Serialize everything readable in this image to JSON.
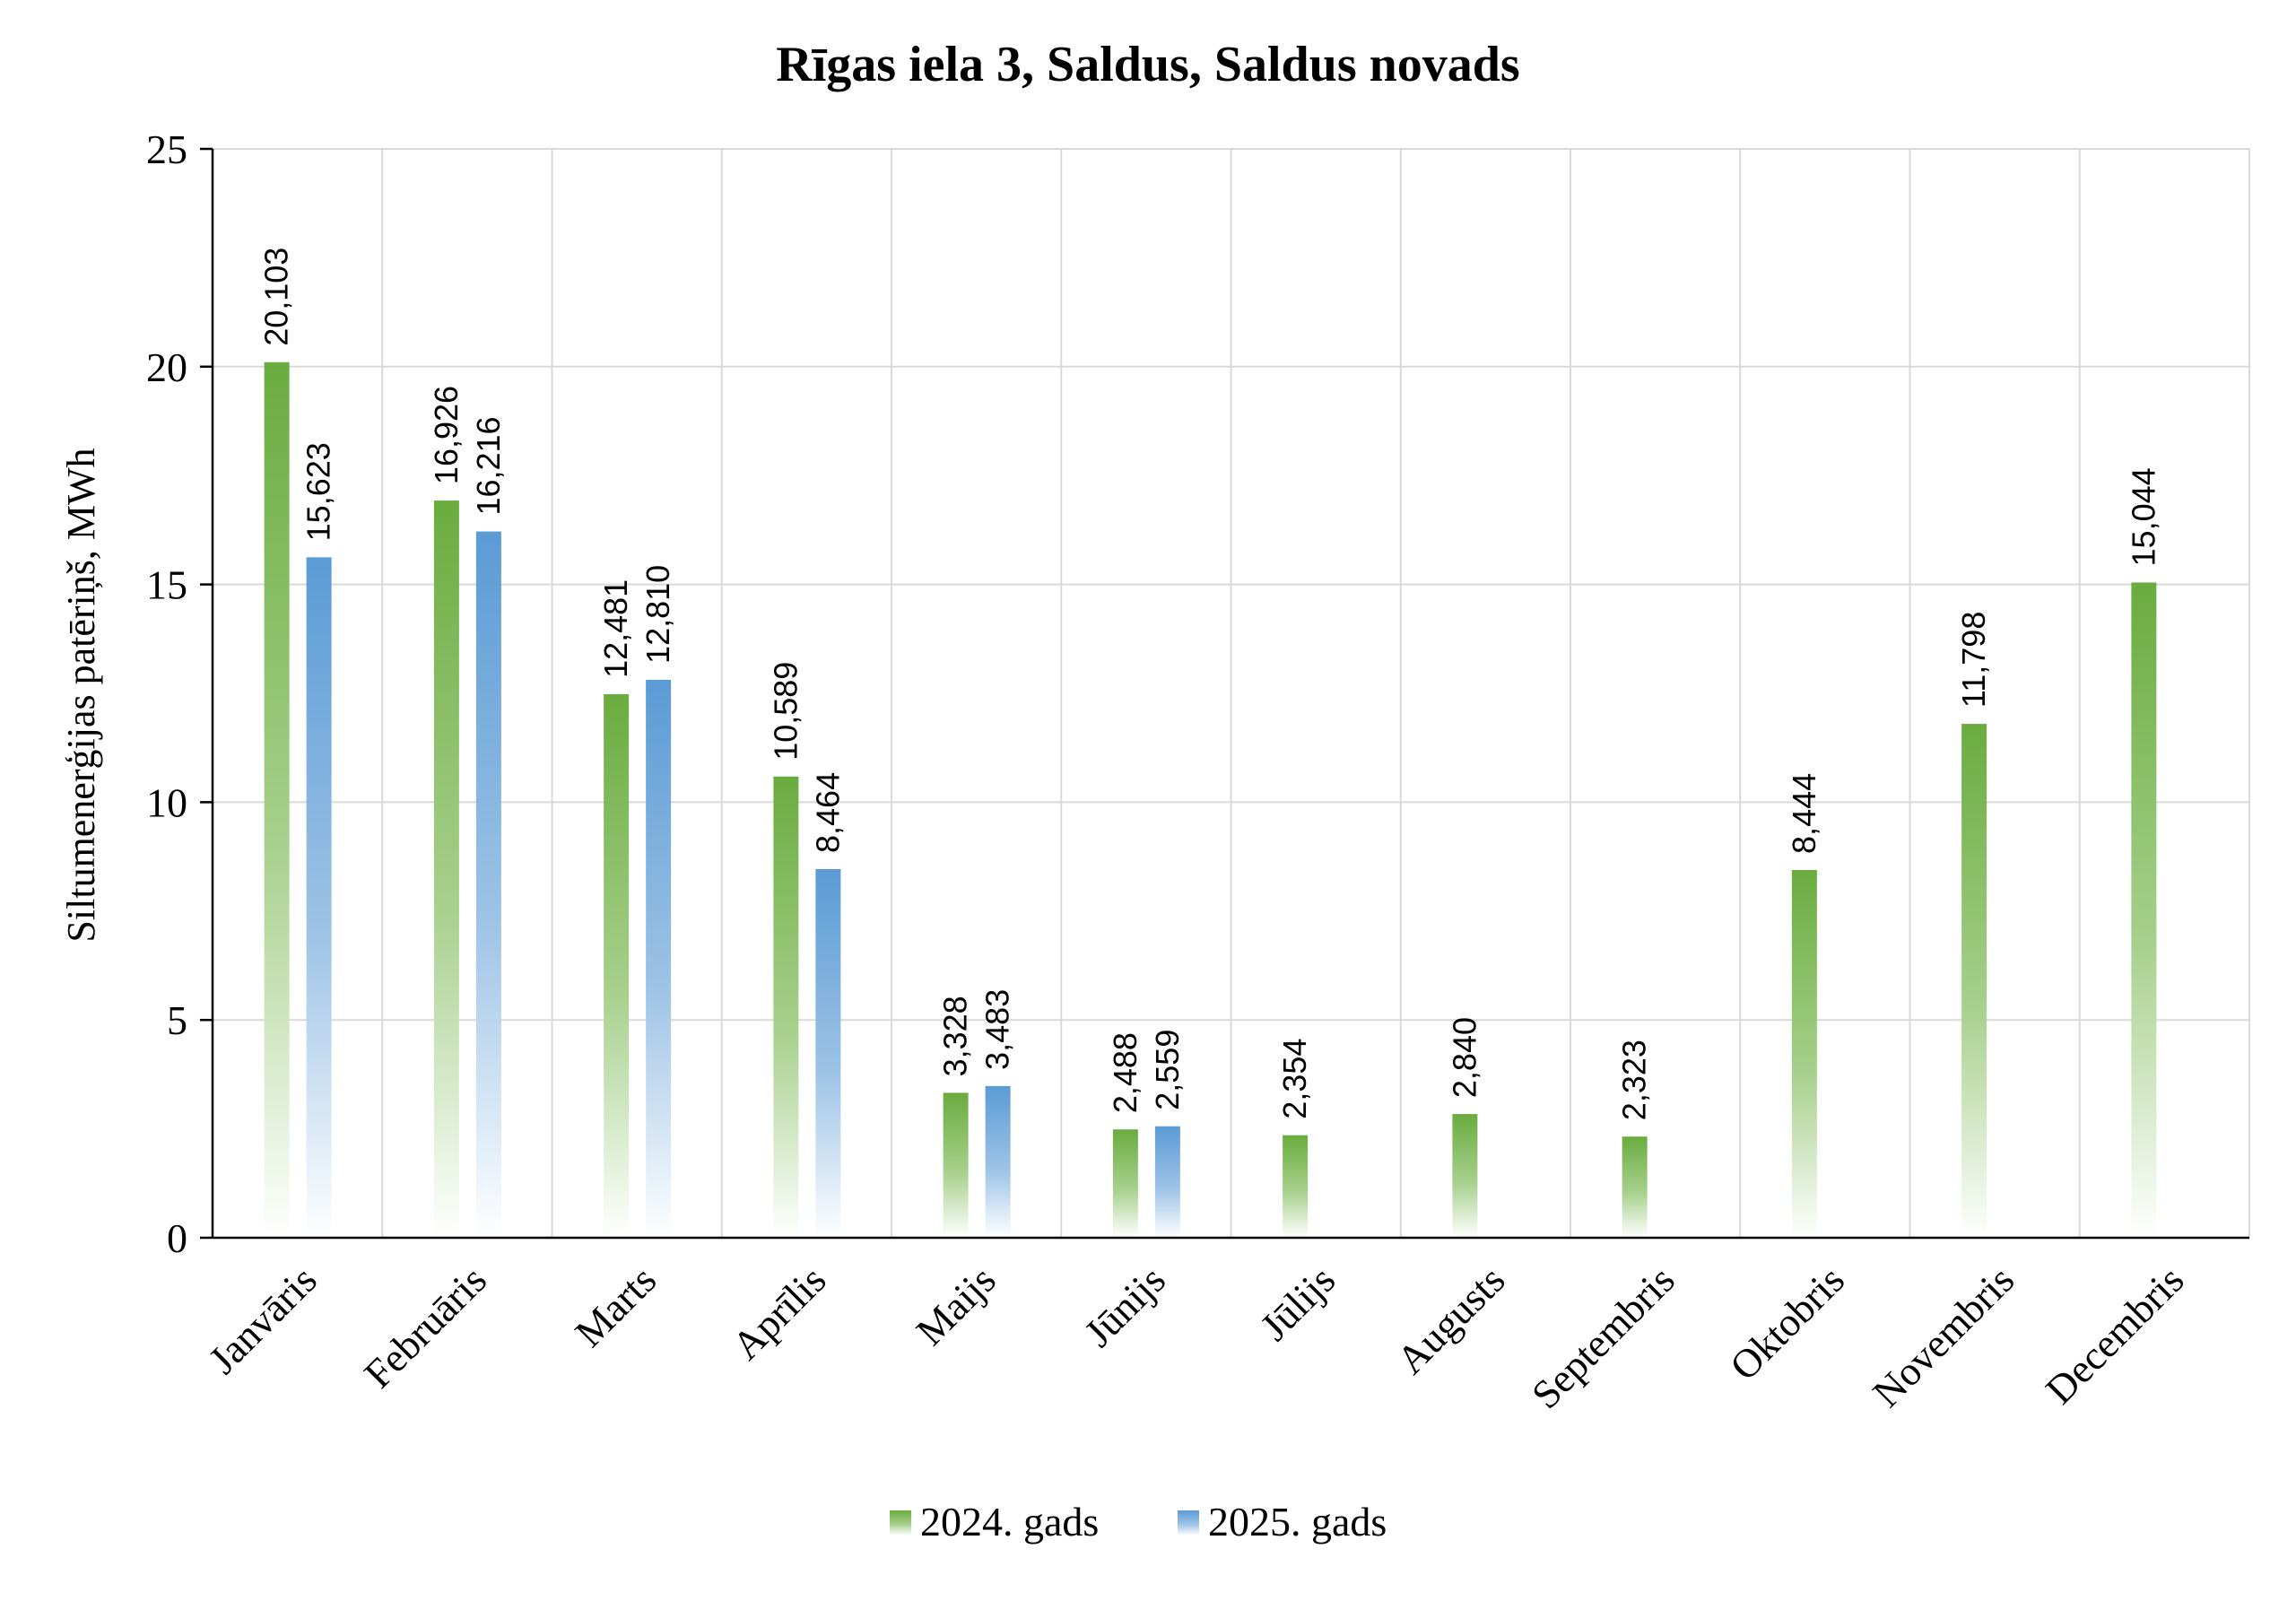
{
  "chart_data": {
    "type": "bar",
    "title": "Rīgas iela 3, Saldus, Saldus novads",
    "xlabel": "",
    "ylabel": "Siltumenerģijas patēriņš, MWh",
    "ylim": [
      0,
      25
    ],
    "yticks": [
      0,
      5,
      10,
      15,
      20,
      25
    ],
    "grid": true,
    "legend_position": "bottom",
    "categories": [
      "Janvāris",
      "Februāris",
      "Marts",
      "Aprīlis",
      "Maijs",
      "Jūnijs",
      "Jūlijs",
      "Augusts",
      "Septembris",
      "Oktobris",
      "Novembris",
      "Decembris"
    ],
    "series": [
      {
        "name": "2024. gads",
        "color": "#6aac3f",
        "values": [
          20.103,
          16.926,
          12.481,
          10.589,
          3.328,
          2.488,
          2.354,
          2.84,
          2.323,
          8.444,
          11.798,
          15.044
        ],
        "labels": [
          "20,103",
          "16,926",
          "12,481",
          "10,589",
          "3,328",
          "2,488",
          "2,354",
          "2,840",
          "2,323",
          "8,444",
          "11,798",
          "15,044"
        ]
      },
      {
        "name": "2025. gads",
        "color": "#5b9bd5",
        "values": [
          15.623,
          16.216,
          12.81,
          8.464,
          3.483,
          2.559,
          null,
          null,
          null,
          null,
          null,
          null
        ],
        "labels": [
          "15,623",
          "16,216",
          "12,810",
          "8,464",
          "3,483",
          "2,559",
          "",
          "",
          "",
          "",
          "",
          ""
        ]
      }
    ]
  }
}
